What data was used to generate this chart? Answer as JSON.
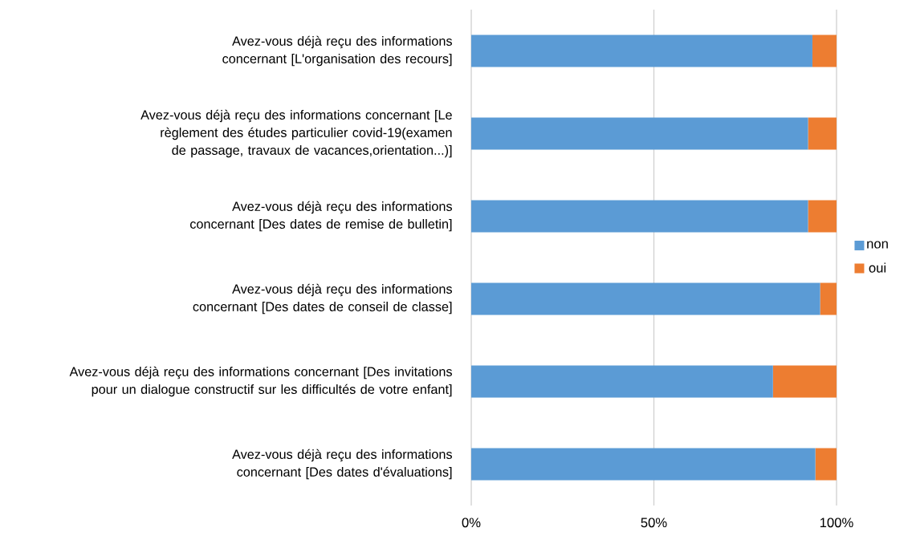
{
  "chart_data": {
    "type": "bar",
    "orientation": "horizontal",
    "stacked": true,
    "categories": [
      "Avez-vous déjà reçu des informations concernant [L'organisation des recours]",
      "Avez-vous déjà reçu des informations concernant [Le règlement des études particulier covid-19(examen de passage, travaux de vacances,orientation...)]",
      "Avez-vous déjà reçu des informations concernant [Des dates de remise de bulletin]",
      "Avez-vous déjà reçu des informations concernant [Des dates de conseil de classe]",
      "Avez-vous déjà reçu des informations concernant [Des invitations pour un dialogue constructif sur les difficultés de votre enfant]",
      "Avez-vous déjà reçu des informations concernant [Des dates d'évaluations]"
    ],
    "series": [
      {
        "name": "non",
        "color": "#5b9bd5",
        "values": [
          93.4,
          92.2,
          92.2,
          95.5,
          82.6,
          94.2
        ]
      },
      {
        "name": "oui",
        "color": "#ed7d31",
        "values": [
          6.6,
          7.8,
          7.8,
          4.5,
          17.4,
          5.8
        ]
      }
    ],
    "xlim": [
      0,
      100
    ],
    "xticks": [
      {
        "value": 0,
        "label": "0%"
      },
      {
        "value": 50,
        "label": "50%"
      },
      {
        "value": 100,
        "label": "100%"
      }
    ],
    "grid": "x",
    "legend": "right"
  }
}
